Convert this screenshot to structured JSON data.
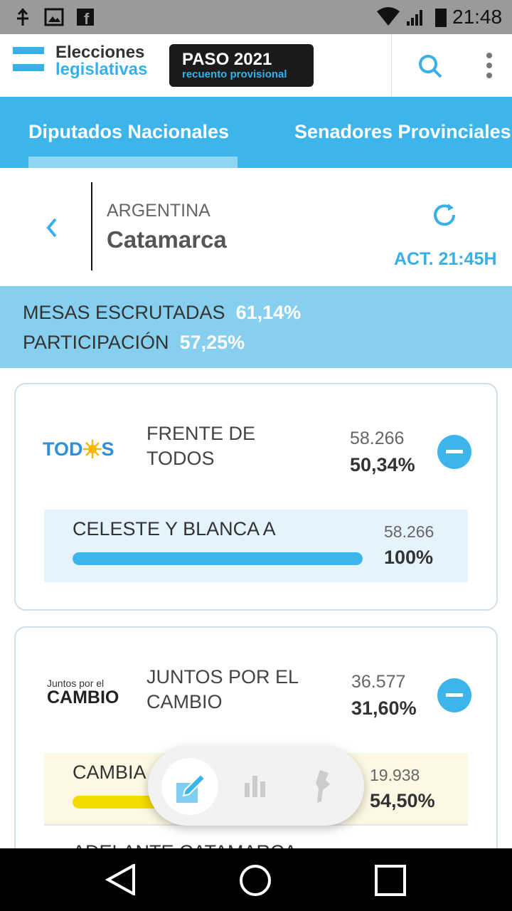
{
  "status_bar": {
    "time": "21:48"
  },
  "header": {
    "brand_line1": "Elecciones",
    "brand_line2": "legislativas",
    "badge_title": "PASO 2021",
    "badge_subtitle": "recuento provisional"
  },
  "tabs": [
    "Diputados Nacionales",
    "Senadores Provinciales"
  ],
  "location": {
    "country": "ARGENTINA",
    "district": "Catamarca",
    "updated": "ACT. 21:45H"
  },
  "summary": [
    {
      "label": "MESAS ESCRUTADAS",
      "value": "61,14%"
    },
    {
      "label": "PARTICIPACIÓN",
      "value": "57,25%"
    }
  ],
  "parties": [
    {
      "logo": [
        "TOD",
        "S"
      ],
      "name": "FRENTE DE TODOS",
      "votes": "58.266",
      "percent": "50,34%",
      "lists": [
        {
          "name": "CELESTE Y BLANCA A",
          "votes": "58.266",
          "share": 100,
          "share_label": "100%"
        }
      ]
    },
    {
      "logo": [
        "Juntos por el",
        "CAMBIO"
      ],
      "name": "JUNTOS POR EL CAMBIO",
      "votes": "36.577",
      "percent": "31,60%",
      "lists": [
        {
          "name": "CAMBIA",
          "votes": "19.938",
          "share": 54.5,
          "share_label": "54,50%"
        },
        {
          "name": "ADELANTE CATAMARCA"
        }
      ]
    }
  ]
}
